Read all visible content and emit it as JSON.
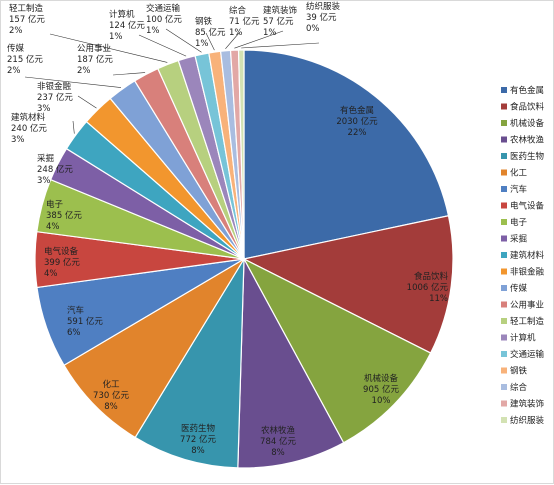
{
  "chart_data": {
    "type": "pie",
    "unit": "亿元",
    "legend_position": "right",
    "slices": [
      {
        "name": "有色金属",
        "value": 2030,
        "value_label": "2030 亿元",
        "percent": "22%",
        "color": "#3c6aa8"
      },
      {
        "name": "食品饮料",
        "value": 1006,
        "value_label": "1006 亿元",
        "percent": "11%",
        "color": "#a33c3a"
      },
      {
        "name": "机械设备",
        "value": 905,
        "value_label": "905 亿元",
        "percent": "10%",
        "color": "#85a43f"
      },
      {
        "name": "农林牧渔",
        "value": 784,
        "value_label": "784 亿元",
        "percent": "8%",
        "color": "#694e8f"
      },
      {
        "name": "医药生物",
        "value": 772,
        "value_label": "772 亿元",
        "percent": "8%",
        "color": "#3795ad"
      },
      {
        "name": "化工",
        "value": 730,
        "value_label": "730 亿元",
        "percent": "8%",
        "color": "#e1842c"
      },
      {
        "name": "汽车",
        "value": 591,
        "value_label": "591 亿元",
        "percent": "6%",
        "color": "#4f7fc2"
      },
      {
        "name": "电气设备",
        "value": 399,
        "value_label": "399 亿元",
        "percent": "4%",
        "color": "#c8463f"
      },
      {
        "name": "电子",
        "value": 385,
        "value_label": "385 亿元",
        "percent": "4%",
        "color": "#9cbf4e"
      },
      {
        "name": "采掘",
        "value": 248,
        "value_label": "248 亿元",
        "percent": "3%",
        "color": "#7d5fa6"
      },
      {
        "name": "建筑材料",
        "value": 240,
        "value_label": "240 亿元",
        "percent": "3%",
        "color": "#3ea5c0"
      },
      {
        "name": "非银金融",
        "value": 237,
        "value_label": "237 亿元",
        "percent": "3%",
        "color": "#f2962e"
      },
      {
        "name": "传媒",
        "value": 215,
        "value_label": "215 亿元",
        "percent": "2%",
        "color": "#7fa1d6"
      },
      {
        "name": "公用事业",
        "value": 187,
        "value_label": "187 亿元",
        "percent": "2%",
        "color": "#d8807b"
      },
      {
        "name": "轻工制造",
        "value": 157,
        "value_label": "157 亿元",
        "percent": "2%",
        "color": "#b7d07f"
      },
      {
        "name": "计算机",
        "value": 124,
        "value_label": "124 亿元",
        "percent": "1%",
        "color": "#9b86bb"
      },
      {
        "name": "交通运输",
        "value": 100,
        "value_label": "100 亿元",
        "percent": "1%",
        "color": "#77c4d8"
      },
      {
        "name": "钢铁",
        "value": 85,
        "value_label": "85 亿元",
        "percent": "1%",
        "color": "#f8b27a"
      },
      {
        "name": "综合",
        "value": 71,
        "value_label": "71 亿元",
        "percent": "1%",
        "color": "#a9bde0"
      },
      {
        "name": "建筑装饰",
        "value": 57,
        "value_label": "57 亿元",
        "percent": "1%",
        "color": "#e2a8a6"
      },
      {
        "name": "纺织服装",
        "value": 39,
        "value_label": "39 亿元",
        "percent": "0%",
        "color": "#d3e2b3"
      }
    ]
  }
}
